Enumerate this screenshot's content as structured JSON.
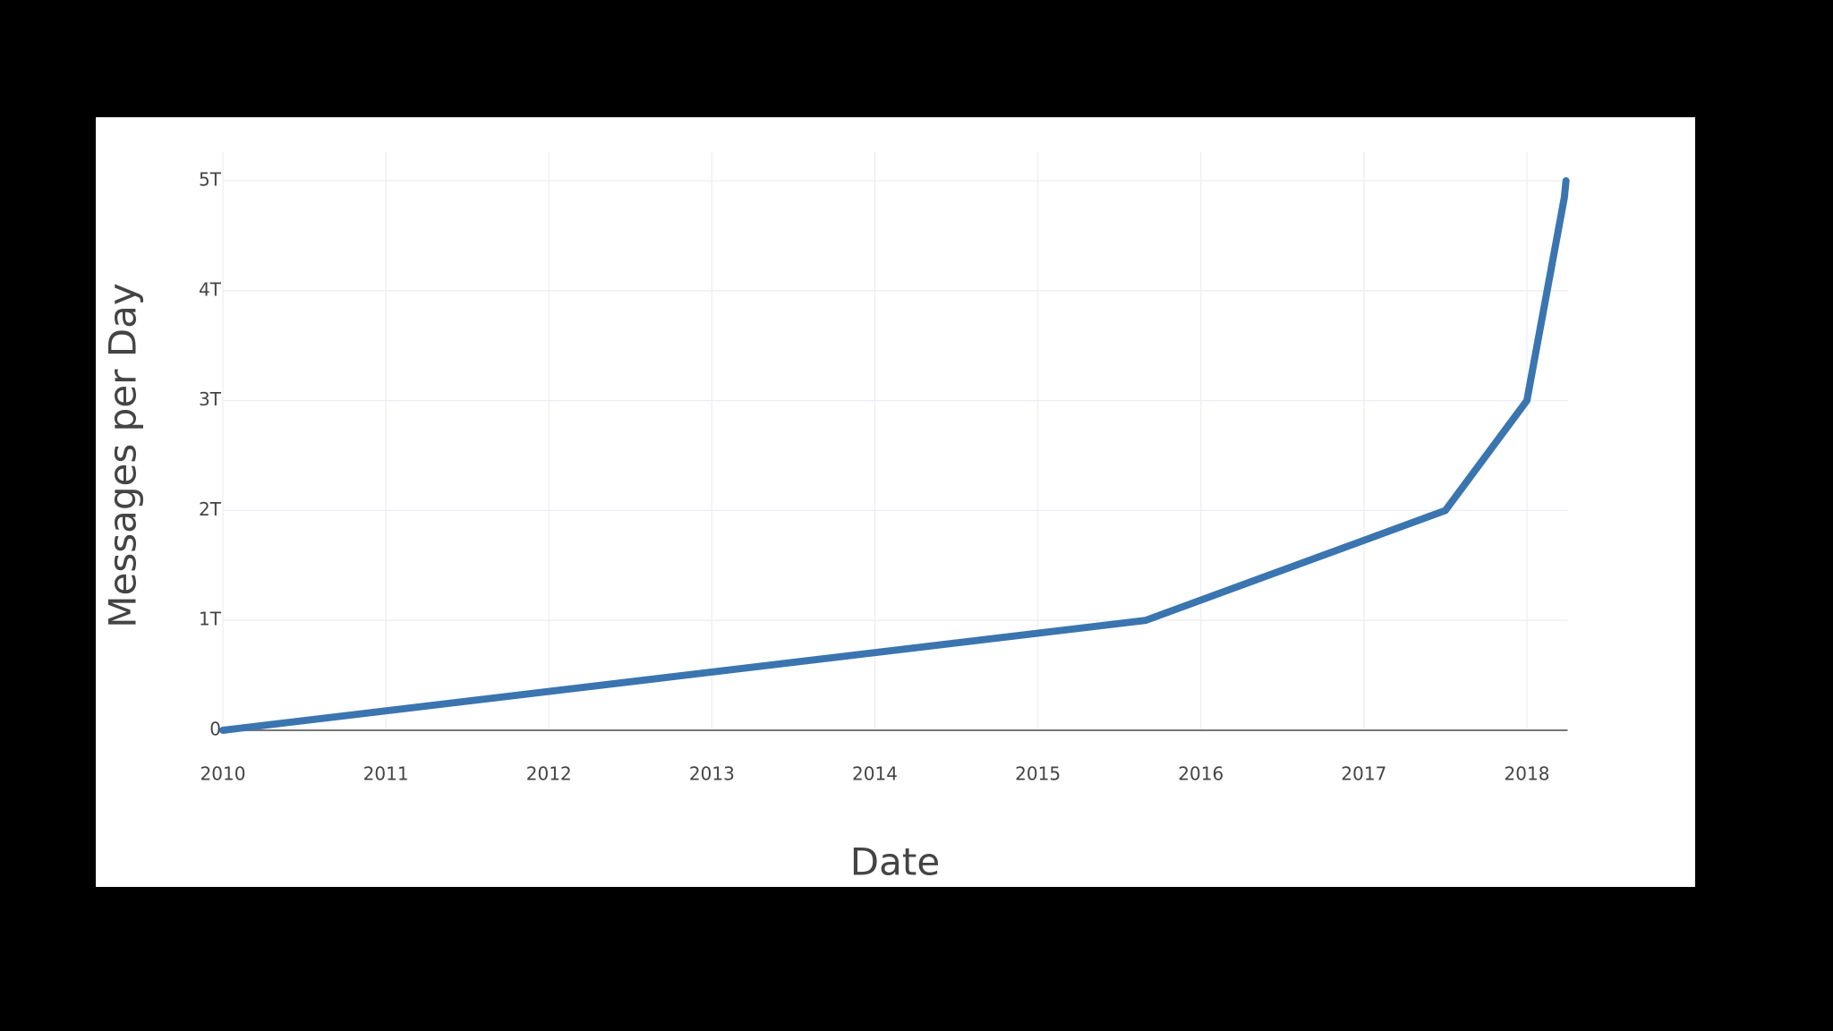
{
  "chart_data": {
    "type": "line",
    "x_label": "Date",
    "y_label": "Messages per Day",
    "x": [
      2010,
      2015.66,
      2017.5,
      2018,
      2018.23,
      2018.24
    ],
    "series": [
      {
        "color": "#3a75b0",
        "values": [
          0,
          1000000000000,
          2000000000000,
          3000000000000,
          4850000000000,
          5000000000000
        ]
      }
    ],
    "xlim": [
      2010,
      2018.25
    ],
    "xticks": [
      2010,
      2011,
      2012,
      2013,
      2014,
      2015,
      2016,
      2017,
      2018
    ],
    "ylim": [
      0,
      5000000000000
    ],
    "yticks": [
      0,
      {
        "value": 1000000000000,
        "label": "1T"
      },
      {
        "value": 2000000000000,
        "label": "2T"
      },
      {
        "value": 3000000000000,
        "label": "3T"
      },
      {
        "value": 4000000000000,
        "label": "4T"
      },
      {
        "value": 5000000000000,
        "label": "5T"
      }
    ],
    "grid": true
  }
}
